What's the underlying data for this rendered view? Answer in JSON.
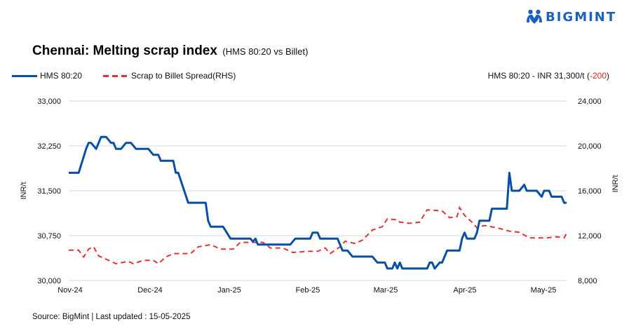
{
  "brand": {
    "name": "BIGMINT",
    "color": "#1c5fc4"
  },
  "header": {
    "title": "Chennai: Melting scrap index",
    "subtitle": "(HMS 80:20 vs Billet)"
  },
  "legend": {
    "items": [
      {
        "label": "HMS 80:20",
        "style": "solid",
        "color": "#0a4fa6"
      },
      {
        "label": "Scrap to Billet Spread(RHS)",
        "style": "dashed",
        "color": "#e63232"
      }
    ]
  },
  "summary": {
    "prefix": "HMS 80:20 - INR 31,300/t (",
    "change": "-200",
    "suffix": ")",
    "change_color": "#e52020"
  },
  "axes": {
    "left": {
      "label": "INR/t",
      "ticks": [
        "33,000",
        "32,250",
        "31,500",
        "30,750",
        "30,000"
      ]
    },
    "right": {
      "label": "INR/t",
      "ticks": [
        "24,000",
        "20,000",
        "16,000",
        "12,000",
        "8,000"
      ]
    },
    "x": {
      "ticks": [
        "Nov-24",
        "Dec-24",
        "Jan-25",
        "Feb-25",
        "Mar-25",
        "Apr-25",
        "May-25"
      ]
    }
  },
  "footer": {
    "source": "Source: BigMint | Last updated : 15-05-2025"
  },
  "chart_data": {
    "type": "line",
    "title": "Chennai: Melting scrap index (HMS 80:20 vs Billet)",
    "xlabel": "",
    "ylabel": "INR/t",
    "y2label": "INR/t",
    "ylim": [
      30000,
      33000
    ],
    "y2lim": [
      8000,
      24000
    ],
    "grid": true,
    "legend_position": "top-left",
    "categories": [
      "Nov-24",
      "Dec-24",
      "Jan-25",
      "Feb-25",
      "Mar-25",
      "Apr-25",
      "May-25"
    ],
    "series": [
      {
        "name": "HMS 80:20",
        "axis": "left",
        "color": "#0a4fa6",
        "style": "solid",
        "points": [
          [
            "2024-11-01",
            31800
          ],
          [
            "2024-11-05",
            31800
          ],
          [
            "2024-11-08",
            32200
          ],
          [
            "2024-11-09",
            32300
          ],
          [
            "2024-11-10",
            32300
          ],
          [
            "2024-11-12",
            32200
          ],
          [
            "2024-11-14",
            32400
          ],
          [
            "2024-11-16",
            32400
          ],
          [
            "2024-11-18",
            32300
          ],
          [
            "2024-11-19",
            32300
          ],
          [
            "2024-11-20",
            32200
          ],
          [
            "2024-11-22",
            32200
          ],
          [
            "2024-11-24",
            32300
          ],
          [
            "2024-11-26",
            32300
          ],
          [
            "2024-11-28",
            32200
          ],
          [
            "2024-12-03",
            32200
          ],
          [
            "2024-12-05",
            32100
          ],
          [
            "2024-12-07",
            32100
          ],
          [
            "2024-12-08",
            32000
          ],
          [
            "2024-12-13",
            32000
          ],
          [
            "2024-12-14",
            31800
          ],
          [
            "2024-12-15",
            31800
          ],
          [
            "2024-12-19",
            31300
          ],
          [
            "2024-12-26",
            31300
          ],
          [
            "2024-12-27",
            31000
          ],
          [
            "2024-12-28",
            30900
          ],
          [
            "2025-01-02",
            30900
          ],
          [
            "2025-01-05",
            30700
          ],
          [
            "2025-01-13",
            30700
          ],
          [
            "2025-01-14",
            30650
          ],
          [
            "2025-01-15",
            30700
          ],
          [
            "2025-01-16",
            30600
          ],
          [
            "2025-01-29",
            30600
          ],
          [
            "2025-01-31",
            30700
          ],
          [
            "2025-02-06",
            30700
          ],
          [
            "2025-02-07",
            30800
          ],
          [
            "2025-02-09",
            30800
          ],
          [
            "2025-02-10",
            30700
          ],
          [
            "2025-02-17",
            30700
          ],
          [
            "2025-02-19",
            30500
          ],
          [
            "2025-02-21",
            30500
          ],
          [
            "2025-02-23",
            30400
          ],
          [
            "2025-03-03",
            30400
          ],
          [
            "2025-03-05",
            30300
          ],
          [
            "2025-03-08",
            30300
          ],
          [
            "2025-03-09",
            30200
          ],
          [
            "2025-03-11",
            30200
          ],
          [
            "2025-03-12",
            30300
          ],
          [
            "2025-03-13",
            30200
          ],
          [
            "2025-03-14",
            30300
          ],
          [
            "2025-03-15",
            30200
          ],
          [
            "2025-03-25",
            30200
          ],
          [
            "2025-03-26",
            30300
          ],
          [
            "2025-03-27",
            30300
          ],
          [
            "2025-03-28",
            30200
          ],
          [
            "2025-03-30",
            30300
          ],
          [
            "2025-03-31",
            30300
          ],
          [
            "2025-04-02",
            30500
          ],
          [
            "2025-04-07",
            30500
          ],
          [
            "2025-04-08",
            30700
          ],
          [
            "2025-04-09",
            30800
          ],
          [
            "2025-04-10",
            30700
          ],
          [
            "2025-04-13",
            30700
          ],
          [
            "2025-04-14",
            30800
          ],
          [
            "2025-04-15",
            31000
          ],
          [
            "2025-04-19",
            31000
          ],
          [
            "2025-04-20",
            31200
          ],
          [
            "2025-04-26",
            31200
          ],
          [
            "2025-04-27",
            31800
          ],
          [
            "2025-04-28",
            31500
          ],
          [
            "2025-05-01",
            31500
          ],
          [
            "2025-05-03",
            31600
          ],
          [
            "2025-05-04",
            31500
          ],
          [
            "2025-05-08",
            31500
          ],
          [
            "2025-05-10",
            31400
          ],
          [
            "2025-05-11",
            31500
          ],
          [
            "2025-05-13",
            31500
          ],
          [
            "2025-05-14",
            31400
          ],
          [
            "2025-05-18",
            31400
          ],
          [
            "2025-05-19",
            31300
          ],
          [
            "2025-05-20",
            31300
          ]
        ]
      },
      {
        "name": "Scrap to Billet Spread(RHS)",
        "axis": "right",
        "color": "#e63232",
        "style": "dashed",
        "points": [
          [
            "2024-11-01",
            10700
          ],
          [
            "2024-11-05",
            10700
          ],
          [
            "2024-11-07",
            10100
          ],
          [
            "2024-11-09",
            10800
          ],
          [
            "2024-11-11",
            11000
          ],
          [
            "2024-11-13",
            10200
          ],
          [
            "2024-11-16",
            9900
          ],
          [
            "2024-11-20",
            9500
          ],
          [
            "2024-11-25",
            9700
          ],
          [
            "2024-11-27",
            9500
          ],
          [
            "2024-12-01",
            9800
          ],
          [
            "2024-12-05",
            9800
          ],
          [
            "2024-12-07",
            9500
          ],
          [
            "2024-12-10",
            10100
          ],
          [
            "2024-12-13",
            10400
          ],
          [
            "2024-12-20",
            10400
          ],
          [
            "2024-12-23",
            11000
          ],
          [
            "2024-12-28",
            11200
          ],
          [
            "2025-01-01",
            10800
          ],
          [
            "2025-01-06",
            10800
          ],
          [
            "2025-01-09",
            11400
          ],
          [
            "2025-01-18",
            11400
          ],
          [
            "2025-01-21",
            10900
          ],
          [
            "2025-01-26",
            10900
          ],
          [
            "2025-01-30",
            10500
          ],
          [
            "2025-02-05",
            10600
          ],
          [
            "2025-02-09",
            10600
          ],
          [
            "2025-02-12",
            10900
          ],
          [
            "2025-02-14",
            10400
          ],
          [
            "2025-02-18",
            11000
          ],
          [
            "2025-02-20",
            11500
          ],
          [
            "2025-02-24",
            11300
          ],
          [
            "2025-02-27",
            11600
          ],
          [
            "2025-03-03",
            12500
          ],
          [
            "2025-03-07",
            12800
          ],
          [
            "2025-03-09",
            13500
          ],
          [
            "2025-03-13",
            13400
          ],
          [
            "2025-03-14",
            13200
          ],
          [
            "2025-03-18",
            13100
          ],
          [
            "2025-03-22",
            13200
          ],
          [
            "2025-03-25",
            14300
          ],
          [
            "2025-03-31",
            14200
          ],
          [
            "2025-04-03",
            13600
          ],
          [
            "2025-04-06",
            13700
          ],
          [
            "2025-04-07",
            14500
          ],
          [
            "2025-04-09",
            13800
          ],
          [
            "2025-04-12",
            13200
          ],
          [
            "2025-04-14",
            12700
          ],
          [
            "2025-04-17",
            12900
          ],
          [
            "2025-04-22",
            12700
          ],
          [
            "2025-04-27",
            12400
          ],
          [
            "2025-05-01",
            12300
          ],
          [
            "2025-05-05",
            11800
          ],
          [
            "2025-05-08",
            11800
          ],
          [
            "2025-05-12",
            11800
          ],
          [
            "2025-05-16",
            11900
          ],
          [
            "2025-05-19",
            11800
          ],
          [
            "2025-05-20",
            12200
          ]
        ]
      }
    ]
  }
}
